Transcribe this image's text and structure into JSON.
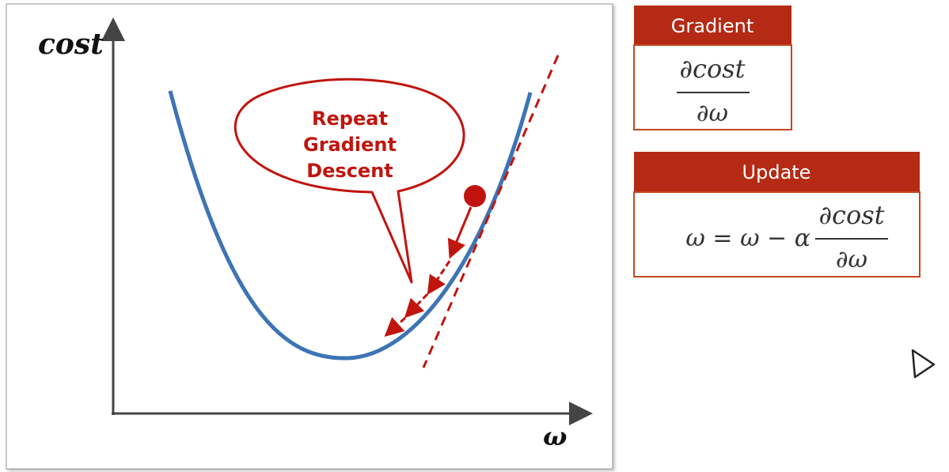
{
  "axes": {
    "y_label": "cost",
    "x_label": "ω"
  },
  "callout": {
    "lines": [
      "Repeat",
      "Gradient",
      "Descent"
    ]
  },
  "gradient_box": {
    "title": "Gradient",
    "numerator": "∂cost",
    "denominator": "∂ω"
  },
  "update_box": {
    "title": "Update",
    "lhs": "ω = ω − α",
    "numerator": "∂cost",
    "denominator": "∂ω"
  }
}
